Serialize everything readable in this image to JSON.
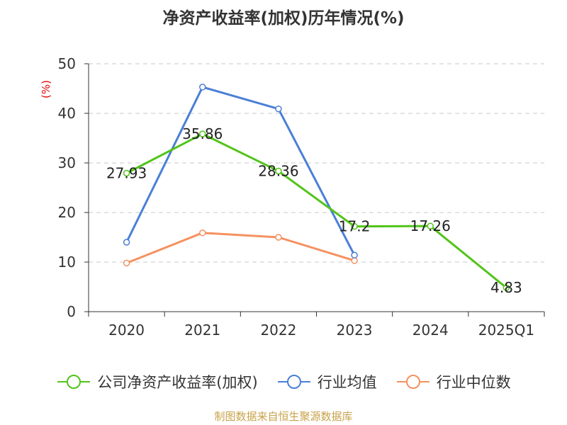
{
  "chart_data": {
    "type": "line",
    "title": "净资产收益率(加权)历年情况(%)",
    "ylabel": "(%)",
    "xlabel": "",
    "categories": [
      "2020",
      "2021",
      "2022",
      "2023",
      "2024",
      "2025Q1"
    ],
    "ylim": [
      0,
      50
    ],
    "yticks": [
      0,
      10,
      20,
      30,
      40,
      50
    ],
    "grid": true,
    "legend_position": "bottom",
    "series": [
      {
        "name": "公司净资产收益率(加权)",
        "color": "#52c41a",
        "values": [
          27.93,
          35.86,
          28.36,
          17.2,
          17.26,
          4.83
        ],
        "labels": [
          "27.93",
          "35.86",
          "28.36",
          "17.2",
          "17.26",
          "4.83"
        ]
      },
      {
        "name": "行业均值",
        "color": "#4a7fd6",
        "values": [
          14.0,
          45.3,
          40.9,
          11.4,
          null,
          null
        ]
      },
      {
        "name": "行业中位数",
        "color": "#f59160",
        "values": [
          9.8,
          15.9,
          15.0,
          10.3,
          null,
          null
        ]
      }
    ]
  },
  "source": "制图数据来自恒生聚源数据库"
}
